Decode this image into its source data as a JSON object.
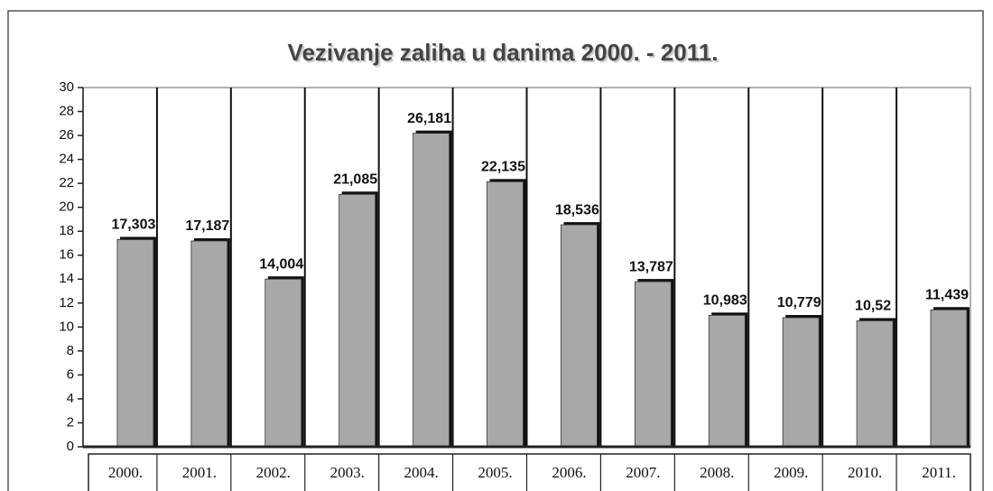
{
  "chart_data": {
    "type": "bar",
    "title": "Vezivanje zaliha u danima 2000. - 2011.",
    "categories": [
      "2000.",
      "2001.",
      "2002.",
      "2003.",
      "2004.",
      "2005.",
      "2006.",
      "2007.",
      "2008.",
      "2009.",
      "2010.",
      "2011."
    ],
    "values": [
      17.303,
      17.187,
      14.004,
      21.085,
      26.181,
      22.135,
      18.536,
      13.787,
      10.983,
      10.779,
      10.52,
      11.439
    ],
    "value_labels": [
      "17,303",
      "17,187",
      "14,004",
      "21,085",
      "26,181",
      "22,135",
      "18,536",
      "13,787",
      "10,983",
      "10,779",
      "10,52",
      "11,439"
    ],
    "color": "#a8a8a8",
    "ylim": [
      0,
      30
    ],
    "yticks": [
      0,
      2,
      4,
      6,
      8,
      10,
      12,
      14,
      16,
      18,
      20,
      22,
      24,
      26,
      28,
      30
    ],
    "grid": true
  }
}
